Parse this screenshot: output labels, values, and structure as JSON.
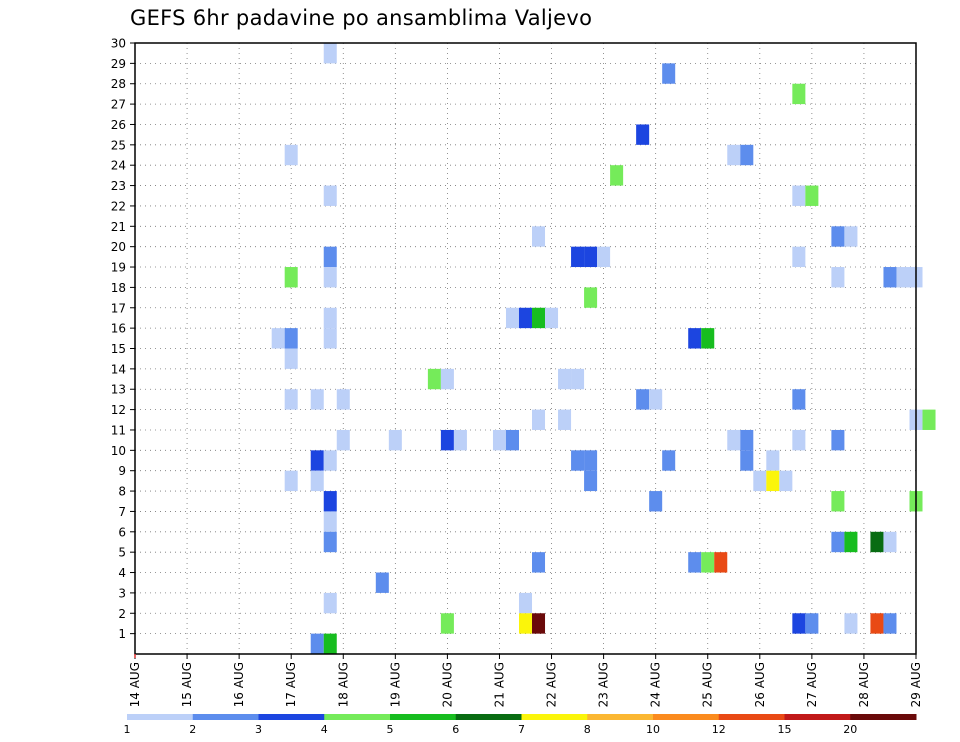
{
  "title": "GEFS 6hr padavine po ansamblima Valjevo",
  "chart_data": {
    "type": "heatmap",
    "title": "GEFS 6hr padavine po ansamblima Valjevo",
    "x_tick_labels": [
      "14 AUG",
      "15 AUG",
      "16 AUG",
      "17 AUG",
      "18 AUG",
      "19 AUG",
      "20 AUG",
      "21 AUG",
      "22 AUG",
      "23 AUG",
      "24 AUG",
      "25 AUG",
      "26 AUG",
      "27 AUG",
      "28 AUG",
      "29 AUG"
    ],
    "x_range_days": [
      0,
      15
    ],
    "time_step_hours": 6,
    "y_tick_labels": [
      "1",
      "2",
      "3",
      "4",
      "5",
      "6",
      "7",
      "8",
      "9",
      "10",
      "11",
      "12",
      "13",
      "14",
      "15",
      "16",
      "17",
      "18",
      "19",
      "20",
      "21",
      "22",
      "23",
      "24",
      "25",
      "26",
      "27",
      "28",
      "29",
      "30"
    ],
    "ylim": [
      0,
      30
    ],
    "grid": true,
    "legend": {
      "placement": "bottom",
      "colors": [
        "#bcd0f8",
        "#5d8ded",
        "#1c45e0",
        "#75eb5a",
        "#17bd1f",
        "#086c12",
        "#fbf50a",
        "#fbb732",
        "#fb8b1e",
        "#e94a15",
        "#c11919",
        "#6a0a0a"
      ],
      "labels": [
        "1",
        "2",
        "3",
        "4",
        "5",
        "6",
        "7",
        "8",
        "10",
        "12",
        "15",
        "20"
      ]
    },
    "cells": [
      {
        "member": 30,
        "t": 3.75,
        "c": 0
      },
      {
        "member": 29,
        "t": 10.25,
        "c": 1
      },
      {
        "member": 28,
        "t": 12.75,
        "c": 3
      },
      {
        "member": 26,
        "t": 9.75,
        "c": 2
      },
      {
        "member": 25,
        "t": 3,
        "c": 0
      },
      {
        "member": 25,
        "t": 11.5,
        "c": 0
      },
      {
        "member": 25,
        "t": 11.75,
        "c": 1
      },
      {
        "member": 24,
        "t": 9.25,
        "c": 3
      },
      {
        "member": 23,
        "t": 3.75,
        "c": 0
      },
      {
        "member": 23,
        "t": 12.75,
        "c": 0
      },
      {
        "member": 23,
        "t": 13,
        "c": 3
      },
      {
        "member": 21,
        "t": 7.75,
        "c": 0
      },
      {
        "member": 21,
        "t": 13.5,
        "c": 1
      },
      {
        "member": 21,
        "t": 13.75,
        "c": 0
      },
      {
        "member": 20,
        "t": 3.75,
        "c": 1
      },
      {
        "member": 20,
        "t": 8.5,
        "c": 2
      },
      {
        "member": 20,
        "t": 8.75,
        "c": 2
      },
      {
        "member": 20,
        "t": 9,
        "c": 0
      },
      {
        "member": 20,
        "t": 12.75,
        "c": 0
      },
      {
        "member": 19,
        "t": 3,
        "c": 3
      },
      {
        "member": 19,
        "t": 3.75,
        "c": 0
      },
      {
        "member": 19,
        "t": 13.5,
        "c": 0
      },
      {
        "member": 19,
        "t": 14.5,
        "c": 1
      },
      {
        "member": 19,
        "t": 14.75,
        "c": 0
      },
      {
        "member": 19,
        "t": 15,
        "c": 0
      },
      {
        "member": 18,
        "t": 8.75,
        "c": 3
      },
      {
        "member": 17,
        "t": 3.75,
        "c": 0
      },
      {
        "member": 17,
        "t": 7.25,
        "c": 0
      },
      {
        "member": 17,
        "t": 7.5,
        "c": 2
      },
      {
        "member": 17,
        "t": 7.75,
        "c": 4
      },
      {
        "member": 17,
        "t": 8,
        "c": 0
      },
      {
        "member": 16,
        "t": 2.75,
        "c": 0
      },
      {
        "member": 16,
        "t": 3,
        "c": 1
      },
      {
        "member": 16,
        "t": 3.75,
        "c": 0
      },
      {
        "member": 16,
        "t": 10.75,
        "c": 2
      },
      {
        "member": 16,
        "t": 11,
        "c": 4
      },
      {
        "member": 15,
        "t": 3,
        "c": 0
      },
      {
        "member": 14,
        "t": 5.75,
        "c": 3
      },
      {
        "member": 14,
        "t": 6,
        "c": 0
      },
      {
        "member": 14,
        "t": 8.25,
        "c": 0
      },
      {
        "member": 14,
        "t": 8.5,
        "c": 0
      },
      {
        "member": 13,
        "t": 3,
        "c": 0
      },
      {
        "member": 13,
        "t": 3.5,
        "c": 0
      },
      {
        "member": 13,
        "t": 4,
        "c": 0
      },
      {
        "member": 13,
        "t": 9.75,
        "c": 1
      },
      {
        "member": 13,
        "t": 10,
        "c": 0
      },
      {
        "member": 13,
        "t": 12.75,
        "c": 1
      },
      {
        "member": 12,
        "t": 7.75,
        "c": 0
      },
      {
        "member": 12,
        "t": 8.25,
        "c": 0
      },
      {
        "member": 12,
        "t": 15,
        "c": 0
      },
      {
        "member": 12,
        "t": 15.25,
        "c": 3
      },
      {
        "member": 11,
        "t": 4,
        "c": 0
      },
      {
        "member": 11,
        "t": 5,
        "c": 0
      },
      {
        "member": 11,
        "t": 6,
        "c": 2
      },
      {
        "member": 11,
        "t": 6.25,
        "c": 0
      },
      {
        "member": 11,
        "t": 7,
        "c": 0
      },
      {
        "member": 11,
        "t": 7.25,
        "c": 1
      },
      {
        "member": 11,
        "t": 11.5,
        "c": 0
      },
      {
        "member": 11,
        "t": 11.75,
        "c": 1
      },
      {
        "member": 11,
        "t": 12.75,
        "c": 0
      },
      {
        "member": 11,
        "t": 13.5,
        "c": 1
      },
      {
        "member": 10,
        "t": 3.5,
        "c": 2
      },
      {
        "member": 10,
        "t": 3.75,
        "c": 0
      },
      {
        "member": 10,
        "t": 8.5,
        "c": 1
      },
      {
        "member": 10,
        "t": 8.75,
        "c": 1
      },
      {
        "member": 10,
        "t": 10.25,
        "c": 1
      },
      {
        "member": 10,
        "t": 11.75,
        "c": 1
      },
      {
        "member": 10,
        "t": 12.25,
        "c": 0
      },
      {
        "member": 9,
        "t": 3,
        "c": 0
      },
      {
        "member": 9,
        "t": 3.5,
        "c": 0
      },
      {
        "member": 9,
        "t": 8.75,
        "c": 1
      },
      {
        "member": 9,
        "t": 12,
        "c": 0
      },
      {
        "member": 9,
        "t": 12.25,
        "c": 6
      },
      {
        "member": 9,
        "t": 12.5,
        "c": 0
      },
      {
        "member": 8,
        "t": 3.75,
        "c": 2
      },
      {
        "member": 8,
        "t": 10,
        "c": 1
      },
      {
        "member": 8,
        "t": 13.5,
        "c": 3
      },
      {
        "member": 8,
        "t": 15,
        "c": 3
      },
      {
        "member": 7,
        "t": 3.75,
        "c": 0
      },
      {
        "member": 6,
        "t": 3.75,
        "c": 1
      },
      {
        "member": 6,
        "t": 13.5,
        "c": 1
      },
      {
        "member": 6,
        "t": 13.75,
        "c": 4
      },
      {
        "member": 6,
        "t": 14.25,
        "c": 5
      },
      {
        "member": 6,
        "t": 14.5,
        "c": 0
      },
      {
        "member": 5,
        "t": 7.75,
        "c": 1
      },
      {
        "member": 5,
        "t": 10.75,
        "c": 1
      },
      {
        "member": 5,
        "t": 11,
        "c": 3
      },
      {
        "member": 5,
        "t": 11.25,
        "c": 9
      },
      {
        "member": 4,
        "t": 4.75,
        "c": 1
      },
      {
        "member": 3,
        "t": 3.75,
        "c": 0
      },
      {
        "member": 3,
        "t": 7.5,
        "c": 0
      },
      {
        "member": 2,
        "t": 6,
        "c": 3
      },
      {
        "member": 2,
        "t": 7.5,
        "c": 6
      },
      {
        "member": 2,
        "t": 7.75,
        "c": 11
      },
      {
        "member": 2,
        "t": 12.75,
        "c": 2
      },
      {
        "member": 2,
        "t": 13,
        "c": 1
      },
      {
        "member": 2,
        "t": 13.75,
        "c": 0
      },
      {
        "member": 2,
        "t": 14.25,
        "c": 9
      },
      {
        "member": 2,
        "t": 14.5,
        "c": 1
      },
      {
        "member": 1,
        "t": 3.5,
        "c": 1
      },
      {
        "member": 1,
        "t": 3.75,
        "c": 4
      }
    ]
  }
}
